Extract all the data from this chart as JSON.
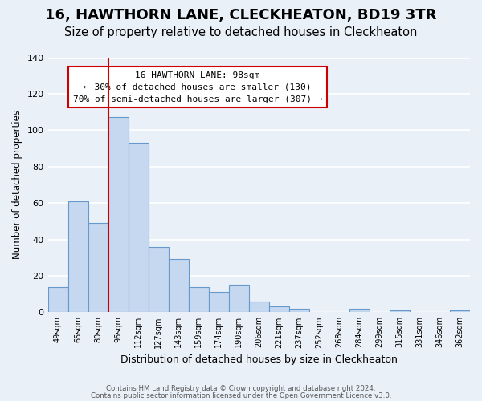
{
  "title": "16, HAWTHORN LANE, CLECKHEATON, BD19 3TR",
  "subtitle": "Size of property relative to detached houses in Cleckheaton",
  "xlabel": "Distribution of detached houses by size in Cleckheaton",
  "ylabel": "Number of detached properties",
  "footnote1": "Contains HM Land Registry data © Crown copyright and database right 2024.",
  "footnote2": "Contains public sector information licensed under the Open Government Licence v3.0.",
  "categories": [
    "49sqm",
    "65sqm",
    "80sqm",
    "96sqm",
    "112sqm",
    "127sqm",
    "143sqm",
    "159sqm",
    "174sqm",
    "190sqm",
    "206sqm",
    "221sqm",
    "237sqm",
    "252sqm",
    "268sqm",
    "284sqm",
    "299sqm",
    "315sqm",
    "331sqm",
    "346sqm",
    "362sqm"
  ],
  "values": [
    14,
    61,
    49,
    107,
    93,
    36,
    29,
    14,
    11,
    15,
    6,
    3,
    2,
    0,
    0,
    2,
    0,
    1,
    0,
    0,
    1
  ],
  "bar_color": "#c5d8f0",
  "bar_edge_color": "#6699cc",
  "vline_index": 2.5,
  "annotation_title": "16 HAWTHORN LANE: 98sqm",
  "annotation_line1": "← 30% of detached houses are smaller (130)",
  "annotation_line2": "70% of semi-detached houses are larger (307) →",
  "annotation_box_edge": "#cc0000",
  "annotation_box_fill": "white",
  "vline_color": "#cc0000",
  "ylim": [
    0,
    140
  ],
  "yticks": [
    0,
    20,
    40,
    60,
    80,
    100,
    120,
    140
  ],
  "background_color": "#eaf0f8",
  "plot_background": "#eaf0f8",
  "grid_color": "#ffffff",
  "title_fontsize": 13,
  "subtitle_fontsize": 10.5
}
